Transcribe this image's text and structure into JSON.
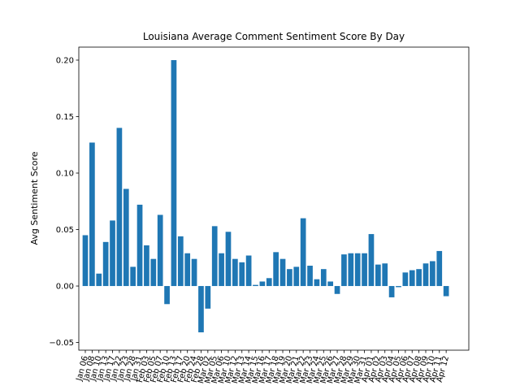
{
  "chart_data": {
    "type": "bar",
    "title": "Louisiana Average Comment Sentiment Score By Day",
    "y_label": "Avg Sentiment Score",
    "categories": [
      "Jan 06",
      "Jan 08",
      "Jan 10",
      "Jan 13",
      "Jan 17",
      "Jan 22",
      "Jan 23",
      "Jan 28",
      "Jan 31",
      "Feb 03",
      "Feb 05",
      "Feb 07",
      "Feb 10",
      "Feb 13",
      "Feb 17",
      "Feb 20",
      "Feb 24",
      "Feb 28",
      "Mar 02",
      "Mar 05",
      "Mar 06",
      "Mar 10",
      "Mar 12",
      "Mar 13",
      "Mar 14",
      "Mar 15",
      "Mar 16",
      "Mar 17",
      "Mar 18",
      "Mar 19",
      "Mar 20",
      "Mar 21",
      "Mar 22",
      "Mar 23",
      "Mar 24",
      "Mar 25",
      "Mar 26",
      "Mar 27",
      "Mar 28",
      "Mar 29",
      "Mar 30",
      "Mar 31",
      "Apr 01",
      "Apr 02",
      "Apr 03",
      "Apr 04",
      "Apr 05",
      "Apr 06",
      "Apr 07",
      "Apr 08",
      "Apr 09",
      "Apr 10",
      "Apr 11",
      "Apr 12"
    ],
    "values": [
      0.045,
      0.127,
      0.011,
      0.039,
      0.058,
      0.14,
      0.086,
      0.017,
      0.072,
      0.036,
      0.024,
      0.063,
      -0.016,
      0.2,
      0.044,
      0.029,
      0.024,
      -0.041,
      -0.02,
      0.053,
      0.029,
      0.048,
      0.024,
      0.021,
      0.027,
      0.001,
      0.004,
      0.007,
      0.03,
      0.024,
      0.015,
      0.017,
      0.06,
      0.018,
      0.006,
      0.015,
      0.004,
      -0.007,
      0.028,
      0.029,
      0.029,
      0.029,
      0.046,
      0.019,
      0.02,
      -0.01,
      -0.001,
      0.012,
      0.014,
      0.015,
      0.02,
      0.022,
      0.031,
      -0.009
    ],
    "color": "#1f77b4",
    "ylim": [
      -0.0568,
      0.2115
    ],
    "yticks": [
      {
        "value": -0.05,
        "label": "−0.05"
      },
      {
        "value": 0,
        "label": "0.00"
      },
      {
        "value": 0.05,
        "label": "0.05"
      },
      {
        "value": 0.1,
        "label": "0.10"
      },
      {
        "value": 0.15,
        "label": "0.15"
      },
      {
        "value": 0.2,
        "label": "0.20"
      }
    ]
  }
}
